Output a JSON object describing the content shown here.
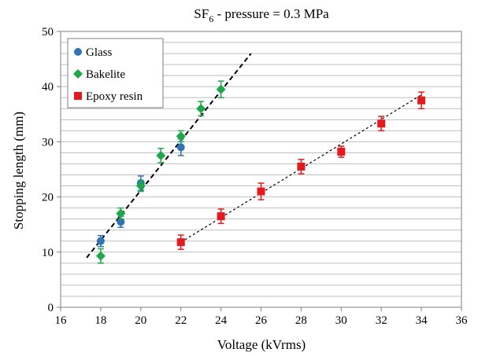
{
  "chart_data": {
    "type": "scatter",
    "title": {
      "prefix": "SF",
      "subscript": "6",
      "suffix": " - pressure = 0.3 MPa"
    },
    "xlabel": "Voltage (kVrms)",
    "ylabel": "Stopping length (mm)",
    "xlim": [
      16,
      36
    ],
    "ylim": [
      0,
      50
    ],
    "xticks": [
      16,
      18,
      20,
      22,
      24,
      26,
      28,
      30,
      32,
      34,
      36
    ],
    "yticks": [
      0,
      10,
      20,
      30,
      40,
      50
    ],
    "minor_grid_step": 2,
    "grid": "horizontal",
    "legend_position": "top-left",
    "series": [
      {
        "name": "Glass",
        "marker": "circle",
        "color": "#2f75b5",
        "points": [
          {
            "x": 18,
            "y": 12.0,
            "err": 1.0
          },
          {
            "x": 19,
            "y": 15.5,
            "err": 1.0
          },
          {
            "x": 20,
            "y": 22.5,
            "err": 1.3
          },
          {
            "x": 22,
            "y": 29.0,
            "err": 1.5
          }
        ]
      },
      {
        "name": "Bakelite",
        "marker": "diamond",
        "color": "#1fa84a",
        "points": [
          {
            "x": 18,
            "y": 9.3,
            "err": 1.3
          },
          {
            "x": 19,
            "y": 17.0,
            "err": 1.0
          },
          {
            "x": 20,
            "y": 22.0,
            "err": 1.0
          },
          {
            "x": 21,
            "y": 27.5,
            "err": 1.3
          },
          {
            "x": 22,
            "y": 31.0,
            "err": 1.0
          },
          {
            "x": 23,
            "y": 36.0,
            "err": 1.3
          },
          {
            "x": 24,
            "y": 39.5,
            "err": 1.5
          }
        ]
      },
      {
        "name": "Epoxy resin",
        "marker": "square",
        "color": "#e41a1c",
        "points": [
          {
            "x": 22,
            "y": 11.8,
            "err": 1.3
          },
          {
            "x": 24,
            "y": 16.5,
            "err": 1.3
          },
          {
            "x": 26,
            "y": 21.0,
            "err": 1.5
          },
          {
            "x": 28,
            "y": 25.5,
            "err": 1.3
          },
          {
            "x": 30,
            "y": 28.2,
            "err": 1.0
          },
          {
            "x": 32,
            "y": 33.3,
            "err": 1.3
          },
          {
            "x": 34,
            "y": 37.5,
            "err": 1.5
          }
        ]
      }
    ],
    "trendlines": [
      {
        "x": [
          17.3,
          25.5
        ],
        "y": [
          9.0,
          46.0
        ],
        "style": "dashed-thick",
        "color": "#000000"
      },
      {
        "x": [
          22.0,
          34.0
        ],
        "y": [
          11.8,
          38.5
        ],
        "style": "dashed-thin",
        "color": "#000000"
      }
    ]
  }
}
